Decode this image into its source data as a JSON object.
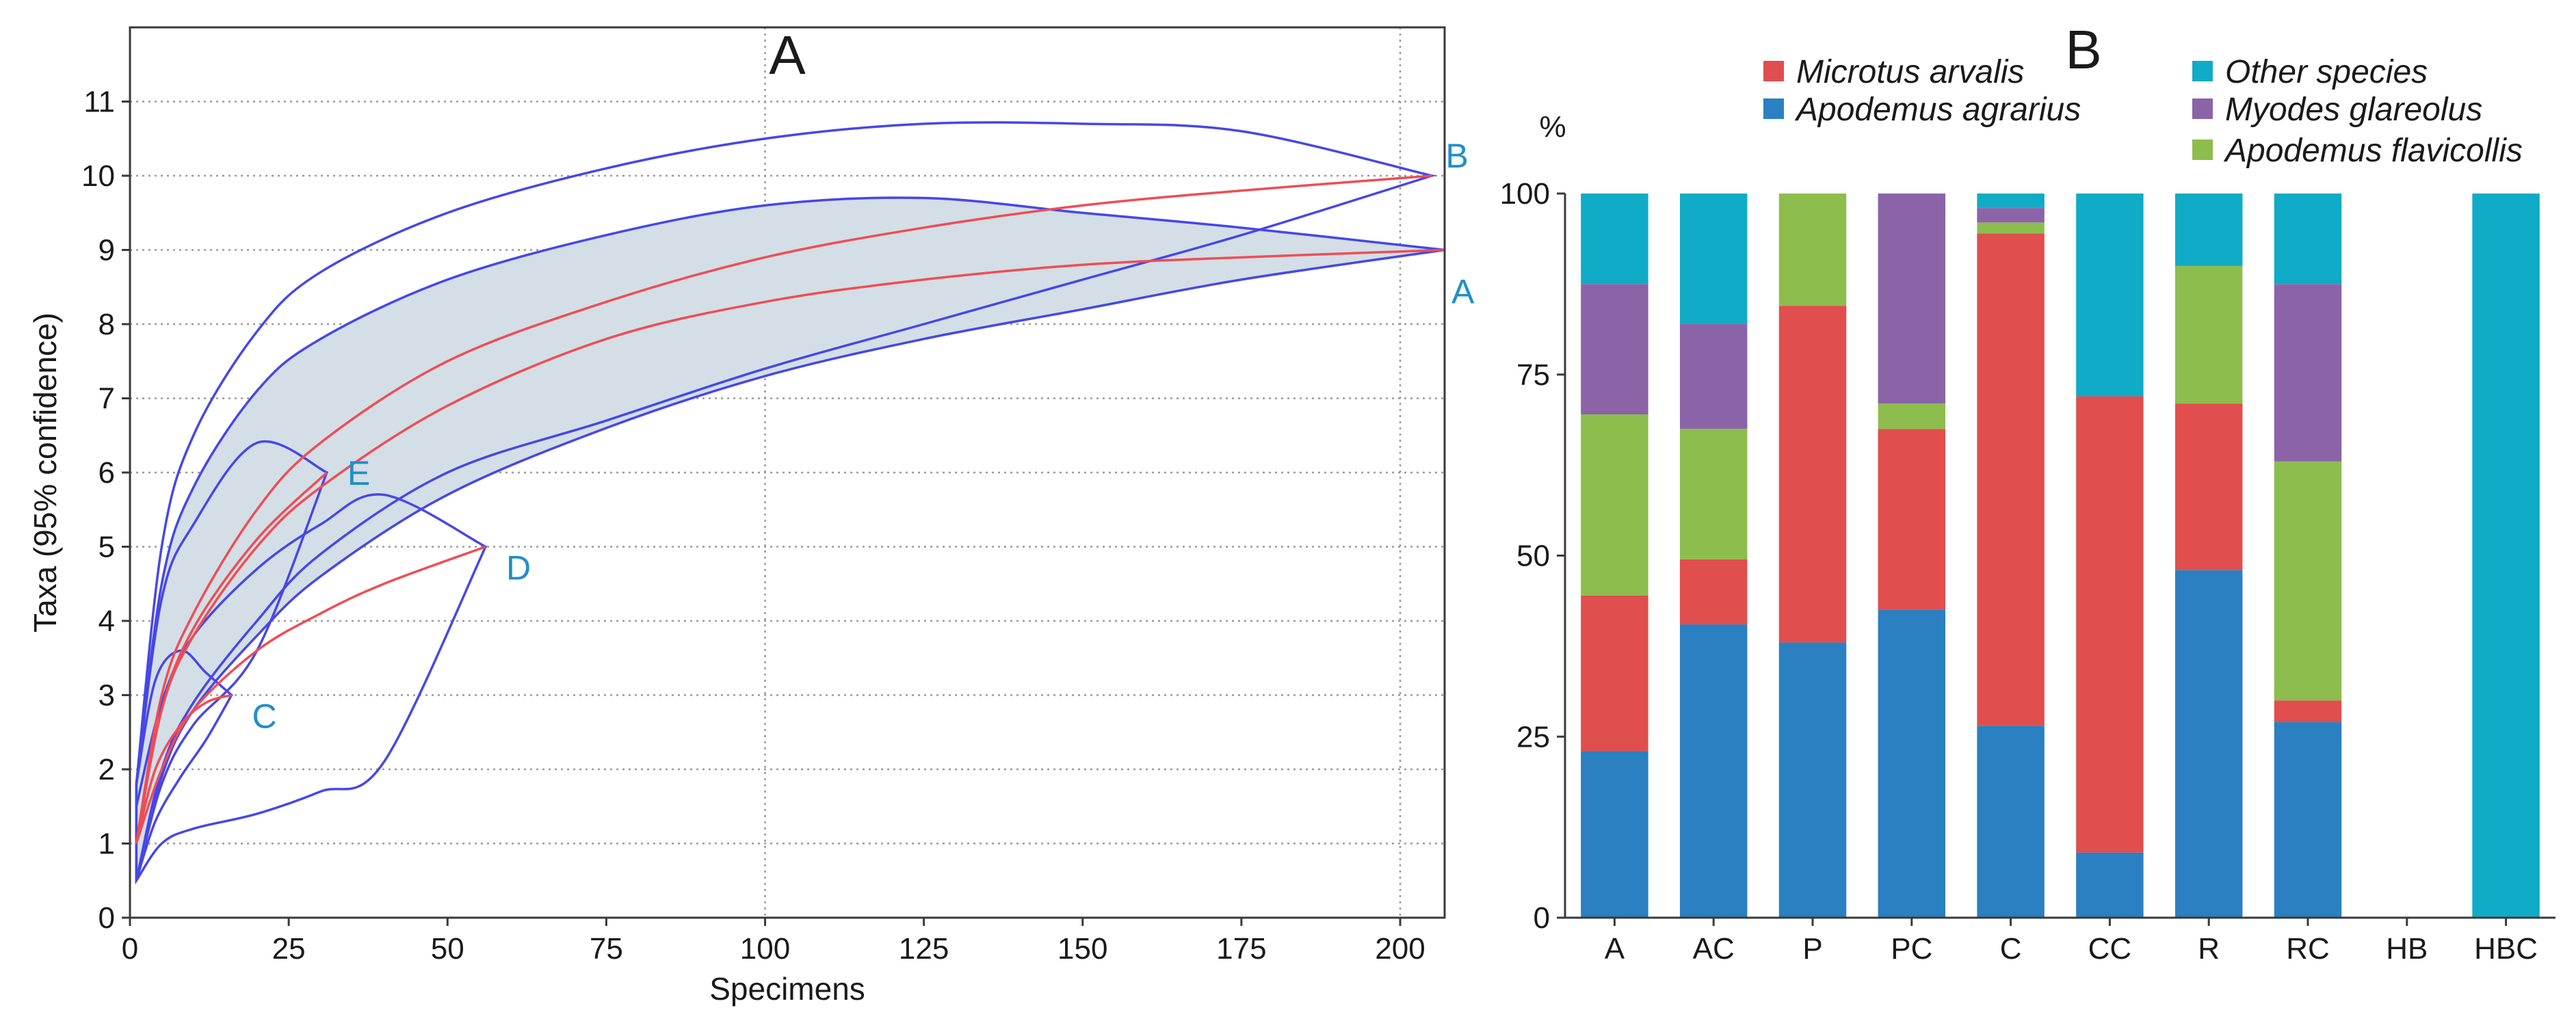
{
  "panel_a_letter": "A",
  "panel_b_letter": "B",
  "chart_data": [
    {
      "type": "line",
      "panel": "A",
      "title": "A",
      "xlabel": "Specimens",
      "ylabel": "Taxa (95% confidence)",
      "xlim": [
        0,
        207
      ],
      "ylim": [
        0,
        12
      ],
      "xticks": [
        0,
        25,
        50,
        75,
        100,
        125,
        150,
        175,
        200
      ],
      "yticks": [
        0,
        1,
        2,
        3,
        4,
        5,
        6,
        7,
        8,
        9,
        10,
        11
      ],
      "grid": "dotted horizontal lines; dotted vertical lines at 100 and 200",
      "series": [
        {
          "name": "A",
          "end": [
            207,
            9
          ],
          "x": [
            1,
            5,
            10,
            20,
            30,
            50,
            75,
            100,
            125,
            150,
            175,
            207
          ],
          "y": [
            1,
            2.8,
            3.8,
            5.0,
            5.8,
            6.9,
            7.8,
            8.3,
            8.6,
            8.8,
            8.9,
            9.0
          ],
          "upper": [
            1.8,
            4.5,
            5.8,
            7.1,
            7.8,
            8.6,
            9.2,
            9.6,
            9.7,
            9.5,
            9.3,
            9.0
          ],
          "lower": [
            0.5,
            1.9,
            2.8,
            3.8,
            4.6,
            5.7,
            6.6,
            7.3,
            7.8,
            8.2,
            8.6,
            9.0
          ],
          "shaded": true
        },
        {
          "name": "B",
          "end": [
            205,
            10
          ],
          "x": [
            1,
            5,
            10,
            20,
            30,
            50,
            75,
            100,
            125,
            150,
            175,
            205
          ],
          "y": [
            1,
            3.0,
            4.1,
            5.5,
            6.4,
            7.5,
            8.3,
            8.9,
            9.3,
            9.6,
            9.8,
            10.0
          ],
          "upper": [
            1.8,
            5.0,
            6.5,
            7.9,
            8.7,
            9.5,
            10.1,
            10.5,
            10.7,
            10.7,
            10.6,
            10.0
          ],
          "lower": [
            0.5,
            2.0,
            2.9,
            4.0,
            4.9,
            6.0,
            6.7,
            7.4,
            8.0,
            8.6,
            9.2,
            10.0
          ],
          "shaded": false
        },
        {
          "name": "C",
          "end": [
            16,
            3
          ],
          "x": [
            1,
            4,
            8,
            12,
            16
          ],
          "y": [
            1,
            2.0,
            2.6,
            2.9,
            3.0
          ],
          "upper": [
            1.8,
            3.2,
            3.6,
            3.3,
            3.0
          ],
          "lower": [
            0.5,
            1.3,
            1.9,
            2.4,
            3.0
          ],
          "shaded": false
        },
        {
          "name": "D",
          "end": [
            56,
            5
          ],
          "x": [
            1,
            5,
            10,
            20,
            30,
            40,
            56
          ],
          "y": [
            1,
            2.0,
            2.8,
            3.6,
            4.1,
            4.5,
            5.0
          ],
          "upper": [
            1.5,
            2.9,
            3.8,
            4.7,
            5.3,
            5.7,
            5.0
          ],
          "lower": [
            0.5,
            1.0,
            1.2,
            1.4,
            1.7,
            2.1,
            5.0
          ],
          "shaded": false
        },
        {
          "name": "E",
          "end": [
            31,
            6
          ],
          "x": [
            1,
            5,
            10,
            20,
            31
          ],
          "y": [
            1,
            2.8,
            3.9,
            5.1,
            6.0
          ],
          "upper": [
            1.8,
            4.3,
            5.3,
            6.4,
            6.0
          ],
          "lower": [
            0.5,
            1.8,
            2.6,
            3.6,
            6.0
          ],
          "shaded": false
        }
      ]
    },
    {
      "type": "bar",
      "stacked": true,
      "panel": "B",
      "title": "B",
      "ylabel": "%",
      "ylim": [
        0,
        100
      ],
      "yticks": [
        0,
        25,
        50,
        75,
        100
      ],
      "categories": [
        "A",
        "AC",
        "P",
        "PC",
        "C",
        "CC",
        "R",
        "RC",
        "HB",
        "HBC"
      ],
      "legend_order": [
        "Microtus arvalis",
        "Apodemus agrarius",
        "Other species",
        "Myodes glareolus",
        "Apodemus flavicollis"
      ],
      "series": [
        {
          "name": "Apodemus agrarius",
          "color": "#2a80c1",
          "values": [
            23,
            40.5,
            38,
            42.5,
            26.5,
            9,
            48,
            27,
            0,
            0
          ]
        },
        {
          "name": "Microtus arvalis",
          "color": "#e04e4e",
          "values": [
            21.5,
            9,
            46.5,
            25,
            68,
            63,
            23,
            3,
            0,
            0
          ]
        },
        {
          "name": "Apodemus flavicollis",
          "color": "#8dbd4d",
          "values": [
            25,
            18,
            15.5,
            3.5,
            1.5,
            0,
            19,
            33,
            0,
            0
          ]
        },
        {
          "name": "Myodes glareolus",
          "color": "#8b64a8",
          "values": [
            18,
            14.5,
            0,
            29,
            2,
            0,
            0,
            24.5,
            0,
            0
          ]
        },
        {
          "name": "Other species",
          "color": "#10abc7",
          "values": [
            12.5,
            18,
            0,
            0,
            2,
            28,
            10,
            12.5,
            0,
            100
          ]
        }
      ]
    }
  ]
}
